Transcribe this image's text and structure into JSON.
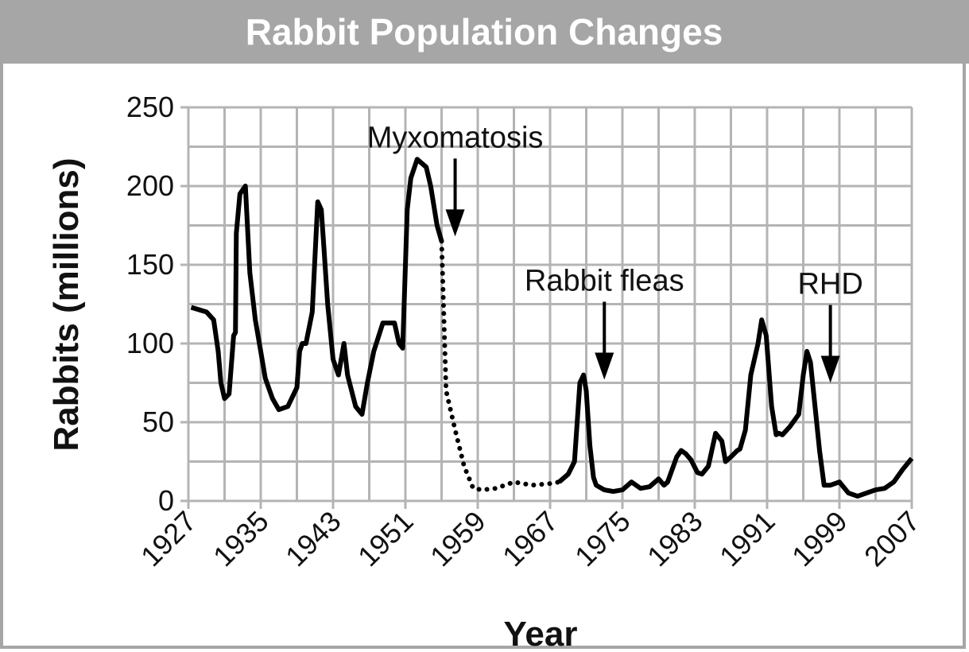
{
  "chart_data": {
    "type": "line",
    "title": "Rabbit Population Changes",
    "xlabel": "Year",
    "ylabel": "Rabbits (millions)",
    "xlim": [
      1927,
      2007
    ],
    "ylim": [
      0,
      250
    ],
    "x_ticks": [
      1927,
      1935,
      1943,
      1951,
      1959,
      1967,
      1975,
      1983,
      1991,
      1999,
      2007
    ],
    "y_ticks": [
      0,
      50,
      100,
      150,
      200,
      250
    ],
    "grid": true,
    "series": [
      {
        "style": "solid",
        "x": [
          1927.3,
          1929,
          1929.8,
          1930.3,
          1930.6,
          1931,
          1931.5,
          1932,
          1932.2,
          1932.3,
          1932.7,
          1933.3,
          1933.8,
          1934.4,
          1935,
          1935.5,
          1936.3,
          1937,
          1938,
          1939,
          1939.3,
          1939.6,
          1940,
          1940.7,
          1941.3,
          1941.7,
          1942,
          1942.4,
          1943,
          1943.6,
          1944.2,
          1944.6,
          1945.5,
          1946.2,
          1946.8,
          1947.5,
          1948.5,
          1949.8,
          1950.3,
          1950.7,
          1951.2,
          1951.6,
          1952.3,
          1953.3,
          1953.8,
          1954.5,
          1955
        ],
        "y": [
          123,
          120,
          115,
          95,
          75,
          65,
          68,
          105,
          107,
          170,
          195,
          200,
          145,
          115,
          95,
          78,
          65,
          58,
          60,
          72,
          95,
          100,
          100,
          120,
          190,
          185,
          160,
          125,
          90,
          80,
          100,
          80,
          60,
          55,
          75,
          95,
          113,
          113,
          100,
          97,
          185,
          205,
          217,
          212,
          200,
          175,
          165
        ]
      },
      {
        "style": "dotted",
        "x": [
          1955,
          1955.5,
          1956.5,
          1957.5,
          1958.5,
          1959.5,
          1961,
          1963,
          1965,
          1967,
          1968
        ],
        "y": [
          165,
          70,
          45,
          22,
          8,
          7,
          8,
          12,
          10,
          11,
          12
        ]
      },
      {
        "style": "solid",
        "x": [
          1968,
          1969,
          1969.7,
          1970.3,
          1970.7,
          1971,
          1971.4,
          1971.8,
          1972.1,
          1972.4,
          1973,
          1974,
          1975,
          1976,
          1977,
          1978,
          1979,
          1979.6,
          1980,
          1981,
          1981.5,
          1982,
          1982.6,
          1983.3,
          1983.8,
          1984.5,
          1985.3,
          1986,
          1986.4,
          1987,
          1987.7,
          1988,
          1988.6,
          1989.2,
          1990,
          1990.4,
          1990.9,
          1991.5,
          1992,
          1992.3,
          1992.7,
          1993.5,
          1994.5,
          1995,
          1995.4,
          1995.8,
          1996.3,
          1996.8,
          1997.3,
          1998,
          1999,
          2000,
          2001,
          2002,
          2003,
          2004,
          2005,
          2006,
          2007
        ],
        "y": [
          12,
          17,
          25,
          75,
          80,
          70,
          35,
          15,
          10,
          9,
          7,
          6,
          7,
          12,
          8,
          9,
          14,
          10,
          12,
          28,
          32,
          30,
          26,
          18,
          17,
          22,
          43,
          38,
          25,
          28,
          32,
          33,
          45,
          80,
          100,
          115,
          105,
          60,
          42,
          43,
          42,
          47,
          55,
          80,
          95,
          88,
          60,
          32,
          10,
          10,
          12,
          5,
          3,
          5,
          7,
          8,
          12,
          20,
          27
        ]
      }
    ],
    "annotations": [
      {
        "text": "Myxomatosis",
        "x": 1956.5,
        "y": 168
      },
      {
        "text": "Rabbit fleas",
        "x": 1973,
        "y": 77
      },
      {
        "text": "RHD",
        "x": 1998,
        "y": 75
      }
    ]
  }
}
